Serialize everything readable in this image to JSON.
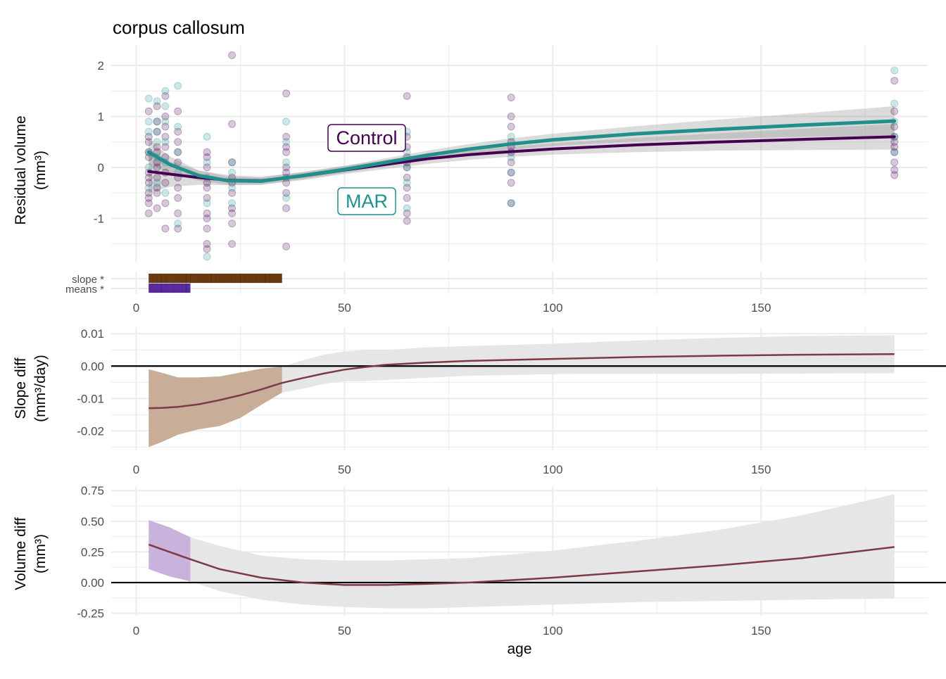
{
  "figure": {
    "title": "corpus callosum",
    "xlabel": "age"
  },
  "colors": {
    "control": "#440154",
    "mar": "#21908C",
    "slope_sig": "#6B3A10",
    "means_sig": "#5B2AA0",
    "diff_line": "#7E3A44",
    "slope_sig_band": "#C8AE99",
    "volume_sig_band": "#C9B3DC",
    "ci_band": "#E6E6E6",
    "grid": "#EBEBEB"
  },
  "chart_data": [
    {
      "type": "scatter",
      "name": "residual-volume",
      "title": "corpus callosum",
      "xlabel": "",
      "ylabel": [
        "Residual volume",
        "(mm³)"
      ],
      "xlim": [
        -6,
        190
      ],
      "ylim": [
        -1.85,
        2.4
      ],
      "xticks": [
        0,
        50,
        100,
        150
      ],
      "yticks": [
        -1,
        0,
        1,
        2
      ],
      "grid": true,
      "labels": [
        "Control",
        "MAR"
      ],
      "series": [
        {
          "name": "Control",
          "fit": {
            "x": [
              3,
              8,
              15,
              22,
              30,
              40,
              50,
              60,
              70,
              80,
              90,
              100,
              120,
              140,
              160,
              182
            ],
            "y": [
              -0.08,
              -0.13,
              -0.2,
              -0.25,
              -0.26,
              -0.17,
              -0.05,
              0.06,
              0.17,
              0.25,
              0.31,
              0.36,
              0.44,
              0.5,
              0.55,
              0.6
            ],
            "ci_low": [
              -0.5,
              -0.38,
              -0.34,
              -0.35,
              -0.34,
              -0.25,
              -0.13,
              -0.03,
              0.07,
              0.15,
              0.21,
              0.25,
              0.3,
              0.33,
              0.34,
              0.35
            ],
            "ci_high": [
              0.34,
              0.12,
              -0.06,
              -0.15,
              -0.18,
              -0.09,
              0.03,
              0.15,
              0.27,
              0.35,
              0.41,
              0.47,
              0.58,
              0.67,
              0.76,
              0.85
            ]
          },
          "points": [
            [
              3,
              0.5
            ],
            [
              3,
              0.2
            ],
            [
              3,
              -0.1
            ],
            [
              3,
              -0.3
            ],
            [
              3,
              -0.5
            ],
            [
              3,
              -0.7
            ],
            [
              3,
              -0.9
            ],
            [
              3,
              1.1
            ],
            [
              3,
              0.3
            ],
            [
              3,
              -0.2
            ],
            [
              3,
              0.6
            ],
            [
              3,
              -0.6
            ],
            [
              5,
              0.9
            ],
            [
              5,
              0.4
            ],
            [
              5,
              0.0
            ],
            [
              5,
              -0.4
            ],
            [
              5,
              -0.8
            ],
            [
              5,
              1.2
            ],
            [
              5,
              0.7
            ],
            [
              5,
              -0.2
            ],
            [
              5,
              0.1
            ],
            [
              5,
              -0.5
            ],
            [
              5,
              0.3
            ],
            [
              7,
              1.4
            ],
            [
              7,
              0.6
            ],
            [
              7,
              0.2
            ],
            [
              7,
              -0.3
            ],
            [
              7,
              -0.7
            ],
            [
              7,
              -1.2
            ],
            [
              7,
              0.8
            ],
            [
              7,
              -0.1
            ],
            [
              7,
              0.4
            ],
            [
              7,
              1.0
            ],
            [
              10,
              1.1
            ],
            [
              10,
              0.5
            ],
            [
              10,
              0.1
            ],
            [
              10,
              -0.4
            ],
            [
              10,
              -0.9
            ],
            [
              10,
              -1.2
            ],
            [
              10,
              0.7
            ],
            [
              10,
              -0.2
            ],
            [
              10,
              0.3
            ],
            [
              10,
              -0.6
            ],
            [
              17,
              0.3
            ],
            [
              17,
              0.0
            ],
            [
              17,
              -0.3
            ],
            [
              17,
              -0.6
            ],
            [
              17,
              -0.9
            ],
            [
              17,
              -1.2
            ],
            [
              17,
              -1.5
            ],
            [
              17,
              -1.6
            ],
            [
              17,
              0.2
            ],
            [
              17,
              -0.4
            ],
            [
              17,
              -1.0
            ],
            [
              23,
              2.2
            ],
            [
              23,
              0.85
            ],
            [
              23,
              0.1
            ],
            [
              23,
              -0.2
            ],
            [
              23,
              -0.5
            ],
            [
              23,
              -0.8
            ],
            [
              23,
              -1.1
            ],
            [
              23,
              -1.5
            ],
            [
              23,
              -0.3
            ],
            [
              23,
              -0.9
            ],
            [
              36,
              1.45
            ],
            [
              36,
              0.6
            ],
            [
              36,
              0.3
            ],
            [
              36,
              0.0
            ],
            [
              36,
              -0.3
            ],
            [
              36,
              -0.5
            ],
            [
              36,
              -0.8
            ],
            [
              36,
              -1.55
            ],
            [
              36,
              0.4
            ],
            [
              36,
              -0.1
            ],
            [
              65,
              1.4
            ],
            [
              65,
              0.6
            ],
            [
              65,
              0.4
            ],
            [
              65,
              0.2
            ],
            [
              65,
              0.0
            ],
            [
              65,
              -0.2
            ],
            [
              65,
              -0.4
            ],
            [
              65,
              -0.6
            ],
            [
              65,
              -0.9
            ],
            [
              65,
              -1.05
            ],
            [
              65,
              0.1
            ],
            [
              90,
              1.37
            ],
            [
              90,
              1.0
            ],
            [
              90,
              0.8
            ],
            [
              90,
              0.5
            ],
            [
              90,
              0.3
            ],
            [
              90,
              0.1
            ],
            [
              90,
              -0.1
            ],
            [
              90,
              -0.3
            ],
            [
              90,
              -0.7
            ],
            [
              90,
              0.4
            ],
            [
              182,
              1.7
            ],
            [
              182,
              1.1
            ],
            [
              182,
              0.8
            ],
            [
              182,
              0.6
            ],
            [
              182,
              0.4
            ],
            [
              182,
              0.3
            ],
            [
              182,
              0.1
            ],
            [
              182,
              -0.05
            ],
            [
              182,
              -0.15
            ],
            [
              182,
              0.5
            ]
          ]
        },
        {
          "name": "MAR",
          "fit": {
            "x": [
              3,
              8,
              15,
              22,
              30,
              40,
              50,
              60,
              70,
              80,
              90,
              100,
              120,
              140,
              160,
              182
            ],
            "y": [
              0.3,
              0.06,
              -0.16,
              -0.26,
              -0.27,
              -0.16,
              -0.04,
              0.1,
              0.24,
              0.36,
              0.46,
              0.54,
              0.66,
              0.75,
              0.83,
              0.91
            ],
            "ci_low": [
              0.05,
              -0.1,
              -0.26,
              -0.34,
              -0.34,
              -0.23,
              -0.11,
              0.02,
              0.15,
              0.26,
              0.35,
              0.42,
              0.51,
              0.56,
              0.6,
              0.62
            ],
            "ci_high": [
              0.55,
              0.22,
              -0.06,
              -0.18,
              -0.2,
              -0.09,
              0.03,
              0.18,
              0.33,
              0.46,
              0.57,
              0.66,
              0.81,
              0.94,
              1.06,
              1.2
            ]
          },
          "points": [
            [
              3,
              1.35
            ],
            [
              3,
              0.7
            ],
            [
              3,
              0.3
            ],
            [
              3,
              0.0
            ],
            [
              3,
              -0.4
            ],
            [
              3,
              0.9
            ],
            [
              5,
              1.3
            ],
            [
              5,
              0.9
            ],
            [
              5,
              0.5
            ],
            [
              5,
              0.2
            ],
            [
              5,
              -0.3
            ],
            [
              5,
              0.7
            ],
            [
              7,
              1.5
            ],
            [
              7,
              1.2
            ],
            [
              7,
              0.9
            ],
            [
              7,
              0.5
            ],
            [
              7,
              0.1
            ],
            [
              7,
              -0.5
            ],
            [
              10,
              1.6
            ],
            [
              10,
              0.8
            ],
            [
              10,
              0.3
            ],
            [
              10,
              -0.1
            ],
            [
              10,
              -1.1
            ],
            [
              17,
              0.6
            ],
            [
              17,
              0.1
            ],
            [
              17,
              -0.2
            ],
            [
              17,
              -0.7
            ],
            [
              17,
              -1.75
            ],
            [
              23,
              0.1
            ],
            [
              23,
              -0.1
            ],
            [
              23,
              -0.4
            ],
            [
              23,
              -0.7
            ],
            [
              36,
              0.9
            ],
            [
              36,
              0.5
            ],
            [
              36,
              0.1
            ],
            [
              36,
              -0.2
            ],
            [
              36,
              -0.6
            ],
            [
              65,
              0.7
            ],
            [
              65,
              0.3
            ],
            [
              65,
              0.0
            ],
            [
              65,
              -0.3
            ],
            [
              65,
              -0.8
            ],
            [
              90,
              0.6
            ],
            [
              90,
              0.2
            ],
            [
              90,
              -0.1
            ],
            [
              90,
              -0.7
            ],
            [
              182,
              1.9
            ],
            [
              182,
              1.25
            ],
            [
              182,
              0.9
            ],
            [
              182,
              0.6
            ],
            [
              182,
              0.3
            ]
          ]
        }
      ]
    },
    {
      "type": "bar",
      "name": "significance-strip",
      "categories": [
        "slope *",
        "means *"
      ],
      "xlim": [
        -6,
        190
      ],
      "xticks": [
        0,
        50,
        100,
        150
      ],
      "intervals": [
        {
          "name": "slope *",
          "from": 3,
          "to": 35
        },
        {
          "name": "means *",
          "from": 3,
          "to": 13
        }
      ]
    },
    {
      "type": "area",
      "name": "slope-difference",
      "xlabel": "",
      "ylabel": [
        "Slope diff",
        "(mm³/day)"
      ],
      "xlim": [
        -6,
        190
      ],
      "ylim": [
        -0.026,
        0.012
      ],
      "xticks": [
        0,
        50,
        100,
        150
      ],
      "yticks": [
        -0.02,
        -0.01,
        0.0,
        0.01
      ],
      "ytick_labels": [
        "-0.02",
        "-0.01",
        "0.00",
        "0.01"
      ],
      "grid": true,
      "reference_line": 0,
      "significant_until": 35,
      "x": [
        3,
        6,
        10,
        15,
        20,
        25,
        30,
        35,
        40,
        45,
        50,
        55,
        60,
        70,
        80,
        100,
        120,
        140,
        160,
        182
      ],
      "y": [
        -0.013,
        -0.0129,
        -0.0126,
        -0.0118,
        -0.0105,
        -0.009,
        -0.0072,
        -0.0052,
        -0.0037,
        -0.0023,
        -0.0011,
        -0.0003,
        0.0004,
        0.0011,
        0.0016,
        0.0022,
        0.0028,
        0.0032,
        0.0035,
        0.0037
      ],
      "ci_low": [
        -0.025,
        -0.0235,
        -0.0212,
        -0.0195,
        -0.0185,
        -0.016,
        -0.012,
        -0.0082,
        -0.007,
        -0.0055,
        -0.0047,
        -0.0046,
        -0.0043,
        -0.0036,
        -0.003,
        -0.0025,
        -0.0024,
        -0.0024,
        -0.0023,
        -0.0022
      ],
      "ci_high": [
        -0.001,
        -0.002,
        -0.0035,
        -0.0035,
        -0.0032,
        -0.002,
        -0.0008,
        -0.0002,
        0.0018,
        0.0035,
        0.0045,
        0.005,
        0.005,
        0.0058,
        0.0062,
        0.0069,
        0.0079,
        0.0087,
        0.0093,
        0.0095
      ]
    },
    {
      "type": "area",
      "name": "volume-difference",
      "xlabel": "age",
      "ylabel": [
        "Volume diff",
        "(mm³)"
      ],
      "xlim": [
        -6,
        190
      ],
      "ylim": [
        -0.27,
        0.78
      ],
      "xticks": [
        0,
        50,
        100,
        150
      ],
      "yticks": [
        -0.25,
        0.0,
        0.25,
        0.5,
        0.75
      ],
      "ytick_labels": [
        "-0.25",
        "0.00",
        "0.25",
        "0.50",
        "0.75"
      ],
      "grid": true,
      "reference_line": 0,
      "significant_until": 13,
      "x": [
        3,
        8,
        13,
        20,
        30,
        40,
        50,
        60,
        70,
        80,
        90,
        100,
        120,
        140,
        160,
        182
      ],
      "y": [
        0.31,
        0.25,
        0.19,
        0.11,
        0.04,
        0.0,
        -0.02,
        -0.02,
        -0.01,
        0.0,
        0.02,
        0.04,
        0.09,
        0.14,
        0.2,
        0.29
      ],
      "ci_low": [
        0.11,
        0.05,
        0.01,
        -0.07,
        -0.14,
        -0.18,
        -0.2,
        -0.21,
        -0.21,
        -0.2,
        -0.19,
        -0.18,
        -0.16,
        -0.15,
        -0.14,
        -0.13
      ],
      "ci_high": [
        0.51,
        0.45,
        0.37,
        0.3,
        0.22,
        0.19,
        0.18,
        0.18,
        0.19,
        0.2,
        0.23,
        0.26,
        0.34,
        0.43,
        0.55,
        0.72
      ]
    }
  ]
}
